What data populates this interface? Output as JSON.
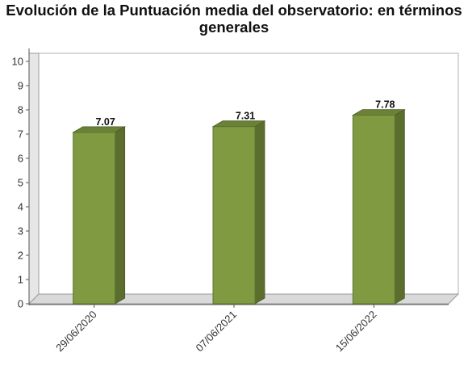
{
  "chart_data": {
    "type": "bar",
    "title": "Evolución de la Puntuación media del observatorio: en términos generales",
    "title_lines": [
      "Evolución de la Puntuación media del observatorio: en términos",
      "generales"
    ],
    "categories": [
      "29/06/2020",
      "07/06/2021",
      "15/06/2022"
    ],
    "values": [
      7.07,
      7.31,
      7.78
    ],
    "data_labels": [
      "7.07",
      "7.31",
      "7.78"
    ],
    "yticks": [
      "0",
      "1",
      "2",
      "3",
      "4",
      "5",
      "6",
      "7",
      "8",
      "9",
      "10"
    ],
    "ylim": [
      0,
      10
    ],
    "xlabel": "",
    "ylabel": "",
    "grid": false,
    "style": "3d",
    "colors": {
      "bar_front": "#7f9a41",
      "bar_side": "#5b6e2e",
      "bar_top": "#6b8236",
      "floor": "#d9d9d9"
    }
  }
}
